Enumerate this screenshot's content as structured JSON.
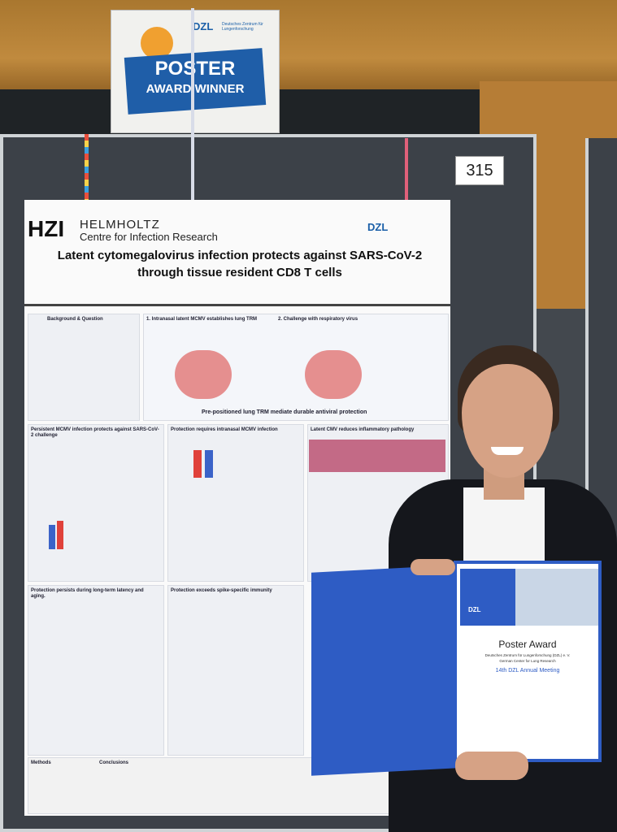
{
  "sign": {
    "line1": "POSTER",
    "line2": "AWARD WINNER",
    "logo": "DZL",
    "org": "Deutsches Zentrum für Lungenforschung"
  },
  "board_number": "315",
  "poster": {
    "logo_left": "HZI",
    "institute": "HELMHOLTZ",
    "institute_sub": "Centre for Infection Research",
    "logo_right": "DZL",
    "title": "Latent cytomegalovirus infection protects against SARS-CoV-2 through tissue resident CD8 T cells",
    "sections": [
      "Background & Question",
      "1. Intranasal latent MCMV establishes lung TRM",
      "2. Challenge with respiratory virus",
      "Pre-positioned lung TRM mediate durable antiviral protection",
      "Persistent MCMV infection protects against SARS-CoV-2 challenge",
      "Protection requires intranasal MCMV infection",
      "Latent CMV reduces inflammatory pathology",
      "Protection persists during long-term latency and aging.",
      "Protection exceeds spike-specific immunity",
      "Methods",
      "Conclusions"
    ]
  },
  "certificate": {
    "title": "Poster Award",
    "org": "Deutsches Zentrum für Lungenforschung (DZL) e. V.",
    "org_en": "German Center for Lung Research",
    "meeting": "14th DZL Annual Meeting",
    "logo": "DZL"
  }
}
